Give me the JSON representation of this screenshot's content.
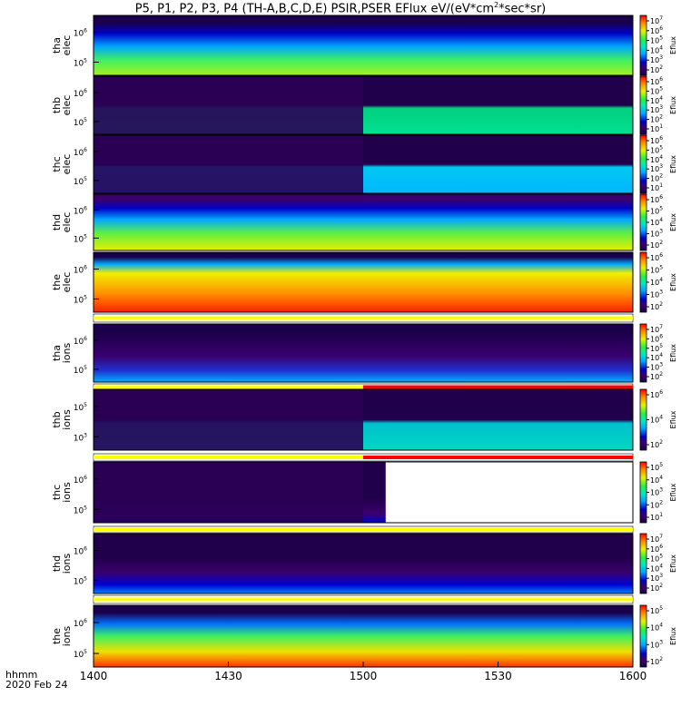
{
  "title": {
    "pre": "P5, P1, P2, P3, P4 (TH-A,B,C,D,E) PSIR,PSER EFlux eV/(eV*cm",
    "sup1": "2",
    "post": "*sec*sr)"
  },
  "footer": {
    "line1": "hhmm",
    "line2": "2020 Feb 24"
  },
  "colorbar_label": "Eflux",
  "colors": {
    "bar_yellow": "#ffff00",
    "bar_red": "#ff0000",
    "background": "#ffffff"
  },
  "chart_data": {
    "type": "heatmap",
    "x": {
      "ticks": [
        "1400",
        "1430",
        "1500",
        "1530",
        "1600"
      ],
      "range_hhmm": [
        "1400",
        "1600"
      ]
    },
    "y_scale": "log",
    "panels": [
      {
        "probe": "tha",
        "species": "elec",
        "ylabel_top": "tha",
        "ylabel_bot": "elec",
        "yticks": [
          {
            "b": "10",
            "e": "5"
          },
          {
            "b": "10",
            "e": "6"
          }
        ],
        "cbar_ticks": [
          {
            "b": "10",
            "e": "2"
          },
          {
            "b": "10",
            "e": "3"
          },
          {
            "b": "10",
            "e": "4"
          },
          {
            "b": "10",
            "e": "5"
          },
          {
            "b": "10",
            "e": "6"
          },
          {
            "b": "10",
            "e": "7"
          }
        ],
        "data_gap_start_hhmm": null,
        "status_bar": null
      },
      {
        "probe": "thb",
        "species": "elec",
        "ylabel_top": "thb",
        "ylabel_bot": "elec",
        "yticks": [
          {
            "b": "10",
            "e": "5"
          },
          {
            "b": "10",
            "e": "6"
          }
        ],
        "cbar_ticks": [
          {
            "b": "10",
            "e": "1"
          },
          {
            "b": "10",
            "e": "2"
          },
          {
            "b": "10",
            "e": "3"
          },
          {
            "b": "10",
            "e": "4"
          },
          {
            "b": "10",
            "e": "5"
          },
          {
            "b": "10",
            "e": "6"
          }
        ],
        "data_gap_start_hhmm": "1500",
        "status_bar": null
      },
      {
        "probe": "thc",
        "species": "elec",
        "ylabel_top": "thc",
        "ylabel_bot": "elec",
        "yticks": [
          {
            "b": "10",
            "e": "5"
          },
          {
            "b": "10",
            "e": "6"
          }
        ],
        "cbar_ticks": [
          {
            "b": "10",
            "e": "1"
          },
          {
            "b": "10",
            "e": "2"
          },
          {
            "b": "10",
            "e": "3"
          },
          {
            "b": "10",
            "e": "4"
          },
          {
            "b": "10",
            "e": "5"
          },
          {
            "b": "10",
            "e": "6"
          }
        ],
        "data_gap_start_hhmm": "1500",
        "status_bar": null
      },
      {
        "probe": "thd",
        "species": "elec",
        "ylabel_top": "thd",
        "ylabel_bot": "elec",
        "yticks": [
          {
            "b": "10",
            "e": "5"
          },
          {
            "b": "10",
            "e": "6"
          }
        ],
        "cbar_ticks": [
          {
            "b": "10",
            "e": "2"
          },
          {
            "b": "10",
            "e": "3"
          },
          {
            "b": "10",
            "e": "4"
          },
          {
            "b": "10",
            "e": "5"
          },
          {
            "b": "10",
            "e": "6"
          }
        ],
        "data_gap_start_hhmm": null,
        "status_bar": null
      },
      {
        "probe": "the",
        "species": "elec",
        "ylabel_top": "the",
        "ylabel_bot": "elec",
        "yticks": [
          {
            "b": "10",
            "e": "5"
          },
          {
            "b": "10",
            "e": "6"
          }
        ],
        "cbar_ticks": [
          {
            "b": "10",
            "e": "2"
          },
          {
            "b": "10",
            "e": "3"
          },
          {
            "b": "10",
            "e": "4"
          },
          {
            "b": "10",
            "e": "5"
          },
          {
            "b": "10",
            "e": "6"
          }
        ],
        "data_gap_start_hhmm": null,
        "status_bar": {
          "split_hhmm": null
        }
      },
      {
        "probe": "tha",
        "species": "ions",
        "ylabel_top": "tha",
        "ylabel_bot": "ions",
        "yticks": [
          {
            "b": "10",
            "e": "5"
          },
          {
            "b": "10",
            "e": "6"
          }
        ],
        "cbar_ticks": [
          {
            "b": "10",
            "e": "2"
          },
          {
            "b": "10",
            "e": "3"
          },
          {
            "b": "10",
            "e": "4"
          },
          {
            "b": "10",
            "e": "5"
          },
          {
            "b": "10",
            "e": "6"
          },
          {
            "b": "10",
            "e": "7"
          }
        ],
        "data_gap_start_hhmm": null,
        "status_bar": {
          "split_hhmm": "1500"
        }
      },
      {
        "probe": "thb",
        "species": "ions",
        "ylabel_top": "thb",
        "ylabel_bot": "ions",
        "yticks": [
          {
            "b": "10",
            "e": "3"
          },
          {
            "b": "10",
            "e": "5"
          }
        ],
        "cbar_ticks": [
          {
            "b": "10",
            "e": "2"
          },
          {
            "b": "10",
            "e": "4"
          },
          {
            "b": "10",
            "e": "6"
          }
        ],
        "data_gap_start_hhmm": "1500",
        "status_bar": {
          "split_hhmm": "1500"
        }
      },
      {
        "probe": "thc",
        "species": "ions",
        "ylabel_top": "thc",
        "ylabel_bot": "ions",
        "yticks": [
          {
            "b": "10",
            "e": "5"
          },
          {
            "b": "10",
            "e": "6"
          }
        ],
        "cbar_ticks": [
          {
            "b": "10",
            "e": "1"
          },
          {
            "b": "10",
            "e": "2"
          },
          {
            "b": "10",
            "e": "3"
          },
          {
            "b": "10",
            "e": "4"
          },
          {
            "b": "10",
            "e": "5"
          }
        ],
        "data_gap_start_hhmm": "1500",
        "no_data_after_hhmm": "1505",
        "status_bar": {
          "split_hhmm": null
        }
      },
      {
        "probe": "thd",
        "species": "ions",
        "ylabel_top": "thd",
        "ylabel_bot": "ions",
        "yticks": [
          {
            "b": "10",
            "e": "5"
          },
          {
            "b": "10",
            "e": "6"
          }
        ],
        "cbar_ticks": [
          {
            "b": "10",
            "e": "2"
          },
          {
            "b": "10",
            "e": "3"
          },
          {
            "b": "10",
            "e": "4"
          },
          {
            "b": "10",
            "e": "5"
          },
          {
            "b": "10",
            "e": "6"
          },
          {
            "b": "10",
            "e": "7"
          }
        ],
        "data_gap_start_hhmm": null,
        "status_bar": {
          "split_hhmm": null
        }
      },
      {
        "probe": "the",
        "species": "ions",
        "ylabel_top": "the",
        "ylabel_bot": "ions",
        "yticks": [
          {
            "b": "10",
            "e": "5"
          },
          {
            "b": "10",
            "e": "6"
          }
        ],
        "cbar_ticks": [
          {
            "b": "10",
            "e": "2"
          },
          {
            "b": "10",
            "e": "3"
          },
          {
            "b": "10",
            "e": "4"
          },
          {
            "b": "10",
            "e": "5"
          }
        ],
        "data_gap_start_hhmm": null,
        "status_bar": null
      }
    ]
  }
}
